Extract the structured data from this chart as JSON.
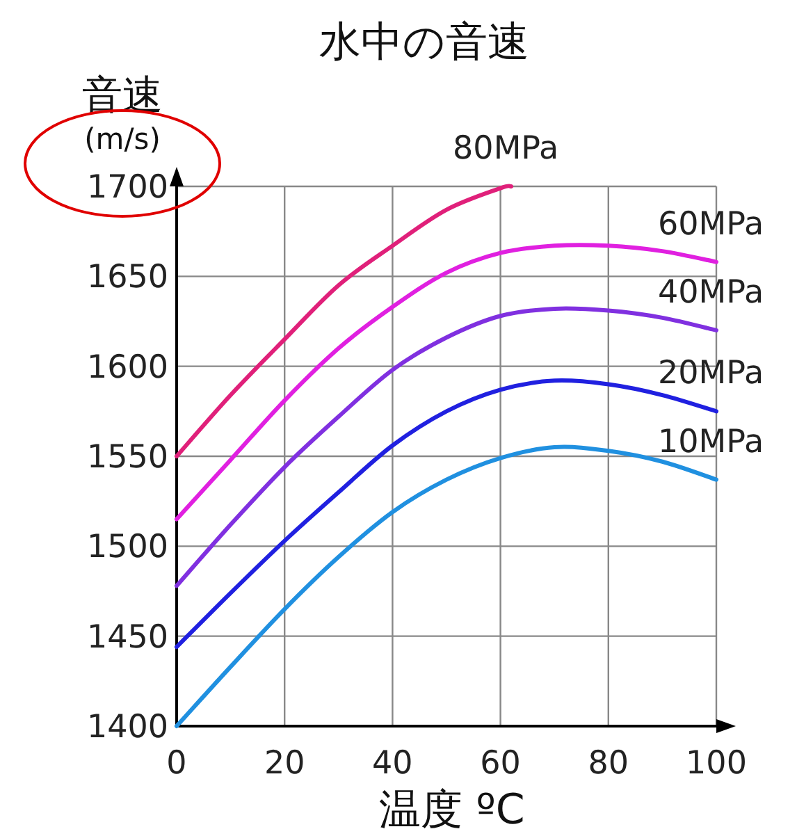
{
  "chart_data": {
    "type": "line",
    "title": "水中の音速",
    "xlabel": "温度 ºC",
    "ylabel": "音速\n(m/s)",
    "xlim": [
      0,
      100
    ],
    "xticks": [
      0,
      20,
      40,
      60,
      80,
      100
    ],
    "ylim": [
      1400,
      1700
    ],
    "yticks": [
      1400,
      1450,
      1500,
      1550,
      1600,
      1650,
      1700
    ],
    "grid": true,
    "marker": "none",
    "line_style": "solid",
    "series": [
      {
        "name": "80MPa",
        "color": "#e0207a",
        "x": [
          0,
          10,
          20,
          30,
          40,
          50,
          60,
          62
        ],
        "values": [
          1550,
          1584,
          1615,
          1645,
          1667,
          1687,
          1699,
          1700
        ]
      },
      {
        "name": "60MPa",
        "color": "#e020e0",
        "x": [
          0,
          10,
          20,
          30,
          40,
          50,
          60,
          70,
          80,
          90,
          100
        ],
        "values": [
          1515,
          1548,
          1581,
          1610,
          1633,
          1652,
          1663,
          1667,
          1667,
          1664,
          1658
        ]
      },
      {
        "name": "40MPa",
        "color": "#8030e0",
        "x": [
          0,
          10,
          20,
          30,
          40,
          50,
          60,
          70,
          80,
          90,
          100
        ],
        "values": [
          1478,
          1512,
          1544,
          1572,
          1598,
          1616,
          1628,
          1632,
          1631,
          1627,
          1620
        ]
      },
      {
        "name": "20MPa",
        "color": "#2020e0",
        "x": [
          0,
          10,
          20,
          30,
          40,
          50,
          60,
          70,
          80,
          90,
          100
        ],
        "values": [
          1444,
          1474,
          1503,
          1530,
          1556,
          1575,
          1587,
          1592,
          1590,
          1584,
          1575
        ]
      },
      {
        "name": "10MPa",
        "color": "#2090e0",
        "x": [
          0,
          10,
          20,
          30,
          40,
          50,
          60,
          70,
          80,
          90,
          100
        ],
        "values": [
          1400,
          1433,
          1465,
          1494,
          1519,
          1537,
          1549,
          1555,
          1553,
          1547,
          1537
        ]
      }
    ]
  }
}
